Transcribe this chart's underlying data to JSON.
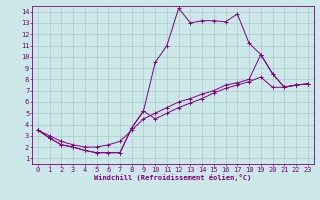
{
  "bg_color": "#cce8e8",
  "line_color": "#800080",
  "grid_color": "#aacccc",
  "xlabel": "Windchill (Refroidissement éolien,°C)",
  "xlim": [
    -0.5,
    23.5
  ],
  "ylim": [
    0.5,
    14.5
  ],
  "xticks": [
    0,
    1,
    2,
    3,
    4,
    5,
    6,
    7,
    8,
    9,
    10,
    11,
    12,
    13,
    14,
    15,
    16,
    17,
    18,
    19,
    20,
    21,
    22,
    23
  ],
  "yticks": [
    1,
    2,
    3,
    4,
    5,
    6,
    7,
    8,
    9,
    10,
    11,
    12,
    13,
    14
  ],
  "line1_x": [
    0,
    1,
    2,
    3,
    4,
    5,
    6,
    7,
    8,
    9,
    10,
    11,
    12,
    13,
    14,
    15,
    16,
    17,
    18,
    19,
    20,
    21,
    22,
    23
  ],
  "line1_y": [
    3.5,
    2.8,
    2.2,
    2.0,
    1.7,
    1.5,
    1.5,
    1.5,
    3.7,
    5.2,
    9.5,
    11.0,
    14.3,
    13.0,
    13.2,
    13.2,
    13.1,
    13.8,
    11.2,
    10.2,
    8.5,
    7.3,
    7.5,
    7.6
  ],
  "line2_x": [
    0,
    1,
    2,
    3,
    4,
    5,
    6,
    7,
    8,
    9,
    10,
    11,
    12,
    13,
    14,
    15,
    16,
    17,
    18,
    19,
    20,
    21,
    22,
    23
  ],
  "line2_y": [
    3.5,
    3.0,
    2.5,
    2.2,
    2.0,
    2.0,
    2.2,
    2.5,
    3.5,
    4.5,
    5.0,
    5.5,
    6.0,
    6.3,
    6.7,
    7.0,
    7.5,
    7.7,
    8.0,
    10.2,
    8.5,
    7.3,
    7.5,
    7.6
  ],
  "line3_x": [
    0,
    1,
    2,
    3,
    4,
    5,
    6,
    7,
    8,
    9,
    10,
    11,
    12,
    13,
    14,
    15,
    16,
    17,
    18,
    19,
    20,
    21,
    22,
    23
  ],
  "line3_y": [
    3.5,
    2.8,
    2.2,
    2.0,
    1.7,
    1.5,
    1.5,
    1.5,
    3.7,
    5.2,
    4.5,
    5.0,
    5.5,
    5.9,
    6.3,
    6.8,
    7.2,
    7.5,
    7.8,
    8.2,
    7.3,
    7.3,
    7.5,
    7.6
  ]
}
